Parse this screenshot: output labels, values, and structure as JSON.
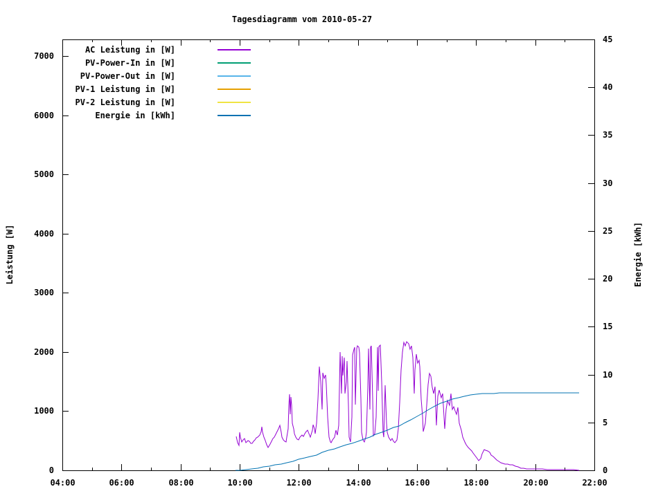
{
  "title": "Tagesdiagramm vom 2010-05-27",
  "axes": {
    "left": {
      "label": "Leistung [W]"
    },
    "right": {
      "label": "Energie [kWh]"
    }
  },
  "legend": [
    {
      "label": "AC Leistung in [W]",
      "color": "#9400d3"
    },
    {
      "label": "PV-Power-In in [W]",
      "color": "#009e73"
    },
    {
      "label": "PV-Power-Out in [W]",
      "color": "#56b4e9"
    },
    {
      "label": "PV-1 Leistung in [W]",
      "color": "#e69f00"
    },
    {
      "label": "PV-2 Leistung in [W]",
      "color": "#f0e442"
    },
    {
      "label": "Energie in [kWh]",
      "color": "#0072b2"
    }
  ],
  "chart_data": {
    "type": "line",
    "title": "Tagesdiagramm vom 2010-05-27",
    "grid": false,
    "legend_position": "top-left-inside",
    "x_axis": {
      "unit": "time of day (decimal hours)",
      "range": [
        4,
        22
      ],
      "tick_labels": [
        "04:00",
        "06:00",
        "08:00",
        "10:00",
        "12:00",
        "14:00",
        "16:00",
        "18:00",
        "20:00",
        "22:00"
      ],
      "major_hours": [
        4,
        6,
        8,
        10,
        12,
        14,
        16,
        18,
        20,
        22
      ],
      "minor_hours": [
        5,
        7,
        9,
        11,
        13,
        15,
        17,
        19,
        21
      ]
    },
    "y_left": {
      "label": "Leistung [W]",
      "range": [
        0,
        7280
      ],
      "ticks": [
        0,
        1000,
        2000,
        3000,
        4000,
        5000,
        6000,
        7000
      ]
    },
    "y_right": {
      "label": "Energie [kWh]",
      "range": [
        0,
        45
      ],
      "ticks": [
        0,
        5,
        10,
        15,
        20,
        25,
        30,
        35,
        40,
        45
      ]
    },
    "series": [
      {
        "name": "AC Leistung in [W]",
        "color": "#9400d3",
        "axis": "left",
        "points": [
          [
            9.88,
            570
          ],
          [
            9.92,
            470
          ],
          [
            9.97,
            420
          ],
          [
            10.0,
            640
          ],
          [
            10.03,
            560
          ],
          [
            10.07,
            480
          ],
          [
            10.12,
            520
          ],
          [
            10.17,
            540
          ],
          [
            10.22,
            470
          ],
          [
            10.27,
            500
          ],
          [
            10.32,
            490
          ],
          [
            10.37,
            455
          ],
          [
            10.42,
            450
          ],
          [
            10.47,
            490
          ],
          [
            10.52,
            520
          ],
          [
            10.57,
            545
          ],
          [
            10.62,
            560
          ],
          [
            10.67,
            600
          ],
          [
            10.72,
            660
          ],
          [
            10.75,
            735
          ],
          [
            10.78,
            640
          ],
          [
            10.82,
            560
          ],
          [
            10.87,
            500
          ],
          [
            10.92,
            430
          ],
          [
            10.97,
            380
          ],
          [
            11.02,
            440
          ],
          [
            11.07,
            490
          ],
          [
            11.12,
            540
          ],
          [
            11.17,
            560
          ],
          [
            11.22,
            610
          ],
          [
            11.27,
            650
          ],
          [
            11.32,
            700
          ],
          [
            11.36,
            758
          ],
          [
            11.4,
            640
          ],
          [
            11.44,
            560
          ],
          [
            11.48,
            520
          ],
          [
            11.52,
            490
          ],
          [
            11.56,
            478
          ],
          [
            11.6,
            560
          ],
          [
            11.63,
            700
          ],
          [
            11.66,
            1100
          ],
          [
            11.69,
            1280
          ],
          [
            11.71,
            950
          ],
          [
            11.73,
            1240
          ],
          [
            11.75,
            1100
          ],
          [
            11.78,
            800
          ],
          [
            11.82,
            700
          ],
          [
            11.86,
            620
          ],
          [
            11.9,
            560
          ],
          [
            11.95,
            530
          ],
          [
            12.0,
            520
          ],
          [
            12.05,
            560
          ],
          [
            12.1,
            600
          ],
          [
            12.15,
            570
          ],
          [
            12.2,
            620
          ],
          [
            12.25,
            660
          ],
          [
            12.3,
            680
          ],
          [
            12.35,
            620
          ],
          [
            12.4,
            560
          ],
          [
            12.45,
            680
          ],
          [
            12.48,
            770
          ],
          [
            12.52,
            700
          ],
          [
            12.56,
            620
          ],
          [
            12.6,
            800
          ],
          [
            12.65,
            1200
          ],
          [
            12.7,
            1750
          ],
          [
            12.74,
            1500
          ],
          [
            12.78,
            1027
          ],
          [
            12.82,
            1645
          ],
          [
            12.86,
            1550
          ],
          [
            12.9,
            1610
          ],
          [
            12.94,
            1450
          ],
          [
            12.98,
            900
          ],
          [
            13.02,
            560
          ],
          [
            13.06,
            480
          ],
          [
            13.1,
            467
          ],
          [
            13.15,
            520
          ],
          [
            13.2,
            560
          ],
          [
            13.26,
            680
          ],
          [
            13.3,
            600
          ],
          [
            13.34,
            760
          ],
          [
            13.38,
            1400
          ],
          [
            13.41,
            1995
          ],
          [
            13.44,
            1300
          ],
          [
            13.47,
            1930
          ],
          [
            13.5,
            1600
          ],
          [
            13.53,
            1902
          ],
          [
            13.56,
            1295
          ],
          [
            13.6,
            1500
          ],
          [
            13.64,
            1843
          ],
          [
            13.68,
            1100
          ],
          [
            13.71,
            560
          ],
          [
            13.75,
            478
          ],
          [
            13.79,
            900
          ],
          [
            13.83,
            1950
          ],
          [
            13.86,
            2042
          ],
          [
            13.89,
            2080
          ],
          [
            13.92,
            1108
          ],
          [
            13.95,
            2060
          ],
          [
            13.98,
            2100
          ],
          [
            14.02,
            2080
          ],
          [
            14.06,
            1990
          ],
          [
            14.09,
            1200
          ],
          [
            14.13,
            642
          ],
          [
            14.17,
            520
          ],
          [
            14.21,
            478
          ],
          [
            14.26,
            560
          ],
          [
            14.3,
            642
          ],
          [
            14.34,
            1400
          ],
          [
            14.37,
            2053
          ],
          [
            14.4,
            1027
          ],
          [
            14.43,
            2080
          ],
          [
            14.46,
            2100
          ],
          [
            14.5,
            1200
          ],
          [
            14.53,
            583
          ],
          [
            14.57,
            620
          ],
          [
            14.62,
            900
          ],
          [
            14.66,
            2077
          ],
          [
            14.69,
            1342
          ],
          [
            14.72,
            2090
          ],
          [
            14.76,
            2112
          ],
          [
            14.8,
            1500
          ],
          [
            14.84,
            640
          ],
          [
            14.88,
            560
          ],
          [
            14.92,
            1435
          ],
          [
            14.96,
            800
          ],
          [
            15.0,
            640
          ],
          [
            15.05,
            560
          ],
          [
            15.1,
            502
          ],
          [
            15.15,
            537
          ],
          [
            15.2,
            490
          ],
          [
            15.25,
            467
          ],
          [
            15.31,
            520
          ],
          [
            15.36,
            700
          ],
          [
            15.41,
            1143
          ],
          [
            15.46,
            1700
          ],
          [
            15.51,
            2000
          ],
          [
            15.56,
            2158
          ],
          [
            15.61,
            2100
          ],
          [
            15.66,
            2170
          ],
          [
            15.71,
            2135
          ],
          [
            15.76,
            2050
          ],
          [
            15.81,
            2100
          ],
          [
            15.86,
            1900
          ],
          [
            15.9,
            1295
          ],
          [
            15.94,
            1700
          ],
          [
            15.98,
            1960
          ],
          [
            16.02,
            1810
          ],
          [
            16.06,
            1855
          ],
          [
            16.1,
            1750
          ],
          [
            16.14,
            1200
          ],
          [
            16.18,
            910
          ],
          [
            16.22,
            660
          ],
          [
            16.27,
            800
          ],
          [
            16.32,
            1100
          ],
          [
            16.37,
            1450
          ],
          [
            16.42,
            1633
          ],
          [
            16.47,
            1587
          ],
          [
            16.52,
            1400
          ],
          [
            16.57,
            1300
          ],
          [
            16.62,
            1412
          ],
          [
            16.66,
            758
          ],
          [
            16.71,
            1250
          ],
          [
            16.76,
            1350
          ],
          [
            16.81,
            1225
          ],
          [
            16.86,
            1295
          ],
          [
            16.9,
            1100
          ],
          [
            16.94,
            700
          ],
          [
            16.99,
            1030
          ],
          [
            17.04,
            1178
          ],
          [
            17.09,
            1100
          ],
          [
            17.14,
            1295
          ],
          [
            17.19,
            1027
          ],
          [
            17.24,
            1080
          ],
          [
            17.29,
            1000
          ],
          [
            17.34,
            950
          ],
          [
            17.38,
            1062
          ],
          [
            17.44,
            800
          ],
          [
            17.49,
            677
          ],
          [
            17.55,
            560
          ],
          [
            17.61,
            478
          ],
          [
            17.67,
            430
          ],
          [
            17.73,
            390
          ],
          [
            17.79,
            362
          ],
          [
            17.85,
            330
          ],
          [
            17.91,
            292
          ],
          [
            17.97,
            250
          ],
          [
            18.03,
            200
          ],
          [
            18.09,
            160
          ],
          [
            18.15,
            200
          ],
          [
            18.21,
            280
          ],
          [
            18.27,
            350
          ],
          [
            18.33,
            340
          ],
          [
            18.39,
            330
          ],
          [
            18.45,
            300
          ],
          [
            18.51,
            260
          ],
          [
            18.57,
            230
          ],
          [
            18.63,
            210
          ],
          [
            18.7,
            180
          ],
          [
            18.77,
            150
          ],
          [
            18.84,
            125
          ],
          [
            18.91,
            117
          ],
          [
            18.98,
            105
          ],
          [
            19.06,
            100
          ],
          [
            19.15,
            95
          ],
          [
            19.24,
            93
          ],
          [
            19.33,
            75
          ],
          [
            19.42,
            60
          ],
          [
            19.51,
            40
          ],
          [
            19.6,
            35
          ],
          [
            19.7,
            28
          ],
          [
            19.8,
            25
          ],
          [
            19.95,
            22
          ],
          [
            20.1,
            18
          ],
          [
            20.25,
            20
          ],
          [
            20.4,
            15
          ],
          [
            20.55,
            14
          ],
          [
            20.7,
            12
          ],
          [
            20.85,
            12
          ],
          [
            21.0,
            10
          ],
          [
            21.15,
            8
          ],
          [
            21.3,
            6
          ],
          [
            21.48,
            5
          ]
        ]
      },
      {
        "name": "PV-Power-In in [W]",
        "color": "#009e73",
        "axis": "left",
        "points": []
      },
      {
        "name": "PV-Power-Out in [W]",
        "color": "#56b4e9",
        "axis": "left",
        "points": []
      },
      {
        "name": "PV-1 Leistung in [W]",
        "color": "#e69f00",
        "axis": "left",
        "points": []
      },
      {
        "name": "PV-2 Leistung in [W]",
        "color": "#f0e442",
        "axis": "left",
        "points": []
      },
      {
        "name": "Energie in [kWh]",
        "color": "#0072b2",
        "axis": "right",
        "points": [
          [
            9.85,
            0
          ],
          [
            10.0,
            0.03
          ],
          [
            10.2,
            0.08
          ],
          [
            10.4,
            0.15
          ],
          [
            10.6,
            0.24
          ],
          [
            10.8,
            0.33
          ],
          [
            11.0,
            0.45
          ],
          [
            11.2,
            0.55
          ],
          [
            11.4,
            0.65
          ],
          [
            11.6,
            0.78
          ],
          [
            11.8,
            0.95
          ],
          [
            12.0,
            1.15
          ],
          [
            12.2,
            1.3
          ],
          [
            12.4,
            1.45
          ],
          [
            12.6,
            1.6
          ],
          [
            12.8,
            1.85
          ],
          [
            13.0,
            2.1
          ],
          [
            13.2,
            2.25
          ],
          [
            13.4,
            2.45
          ],
          [
            13.6,
            2.7
          ],
          [
            13.8,
            2.85
          ],
          [
            14.0,
            3.0
          ],
          [
            14.2,
            3.25
          ],
          [
            14.4,
            3.5
          ],
          [
            14.6,
            3.75
          ],
          [
            14.8,
            4.0
          ],
          [
            15.0,
            4.2
          ],
          [
            15.2,
            4.45
          ],
          [
            15.4,
            4.6
          ],
          [
            15.6,
            4.95
          ],
          [
            15.8,
            5.3
          ],
          [
            16.0,
            5.65
          ],
          [
            16.2,
            6.0
          ],
          [
            16.4,
            6.35
          ],
          [
            16.6,
            6.7
          ],
          [
            16.8,
            7.0
          ],
          [
            17.0,
            7.2
          ],
          [
            17.2,
            7.45
          ],
          [
            17.4,
            7.6
          ],
          [
            17.6,
            7.75
          ],
          [
            17.8,
            7.88
          ],
          [
            18.0,
            7.95
          ],
          [
            18.2,
            8.0
          ],
          [
            18.4,
            8.03
          ],
          [
            18.6,
            8.05
          ],
          [
            18.8,
            8.06
          ],
          [
            19.0,
            8.06
          ],
          [
            19.4,
            8.07
          ],
          [
            19.7,
            8.07
          ],
          [
            19.75,
            8.1
          ],
          [
            20.0,
            8.1
          ],
          [
            20.5,
            8.1
          ],
          [
            21.0,
            8.1
          ],
          [
            21.48,
            8.1
          ]
        ]
      }
    ]
  }
}
